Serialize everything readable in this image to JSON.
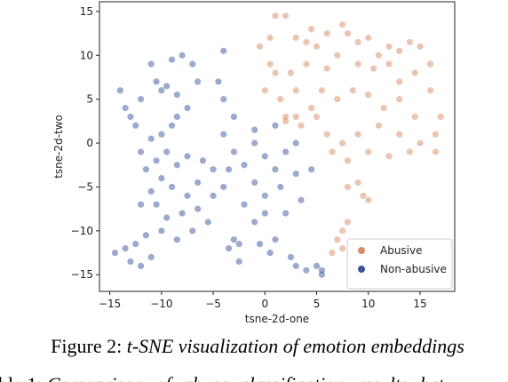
{
  "chart_data": {
    "type": "scatter",
    "xlabel": "tsne-2d-one",
    "ylabel": "tsne-2d-two",
    "xlim": [
      -16.0,
      18.35
    ],
    "ylim": [
      -16.9,
      16.1
    ],
    "xticks": [
      {
        "value": -15,
        "label": "−15"
      },
      {
        "value": -10,
        "label": "−10"
      },
      {
        "value": -5,
        "label": "−5"
      },
      0,
      5,
      10,
      15
    ],
    "yticks": [
      {
        "value": -15,
        "label": "−15"
      },
      {
        "value": -10,
        "label": "−10"
      },
      {
        "value": -5,
        "label": "−5"
      },
      0,
      5,
      10,
      15
    ],
    "legend": "lower right",
    "series": [
      {
        "name": "Abusive",
        "color": "#d98a66",
        "x": [
          1,
          2,
          0.5,
          3,
          4.5,
          5,
          6,
          7.5,
          8,
          9,
          10,
          11,
          12,
          13,
          14,
          15,
          16,
          14.5,
          13,
          12,
          10.5,
          9,
          7,
          6,
          4,
          2.5,
          1,
          0,
          1.5,
          3,
          4.5,
          5.5,
          7,
          8.5,
          10,
          11.5,
          13,
          14.5,
          16,
          17,
          16.5,
          15,
          13,
          11,
          9,
          7.5,
          6,
          5,
          3.5,
          2,
          6.5,
          8,
          10,
          12,
          14,
          16.5,
          9,
          8,
          9.5,
          10,
          8,
          7.5,
          7.5,
          6.5,
          7,
          3,
          2,
          0.5,
          -0.5,
          4
        ],
        "values": [
          14.5,
          14.5,
          12,
          12,
          13,
          11,
          12.5,
          13.5,
          12.5,
          11.5,
          12,
          10,
          11,
          10.5,
          11.5,
          11,
          9,
          8,
          7,
          9,
          8.5,
          9,
          10,
          8.5,
          9,
          8,
          8,
          6,
          5,
          6,
          4,
          6,
          5,
          6,
          5.5,
          4,
          5,
          3,
          6,
          3,
          1,
          0,
          1,
          2,
          1,
          0,
          1,
          3,
          2,
          3,
          -1,
          -2,
          -1,
          -1.5,
          -1,
          -1,
          -4.5,
          -5,
          -6,
          -6.5,
          -9,
          -10,
          -12,
          -12.5,
          -11,
          3,
          2.5,
          9,
          11,
          11.5
        ]
      },
      {
        "name": "Non-abusive",
        "color": "#3a55a0",
        "x": [
          -14,
          -13.5,
          -13,
          -12.5,
          -12,
          -11,
          -10.5,
          -10,
          -9.5,
          -9,
          -8.5,
          -8,
          -7,
          -6.5,
          -7.5,
          -8.5,
          -9,
          -10,
          -11,
          -12,
          -11.5,
          -10.5,
          -9.5,
          -8.5,
          -7.5,
          -6,
          -5,
          -6.5,
          -7.5,
          -9,
          -10,
          -11,
          -12,
          -10.5,
          -9.5,
          -8,
          -6.5,
          -5,
          -4,
          -3.5,
          -3,
          -4,
          -3,
          -4,
          -4.5,
          -4,
          -5.5,
          -7,
          -8.5,
          -10,
          -11.5,
          -12.5,
          -13.5,
          -14.5,
          -13,
          -12,
          -11,
          -2,
          -1,
          0,
          1,
          2,
          3,
          1.5,
          0,
          -1,
          -2,
          -1,
          0,
          2,
          3.5,
          3,
          4.5,
          -0.5,
          -2.5,
          -3.5,
          1,
          2.5,
          3,
          4,
          5,
          5.5,
          5.5,
          1,
          -1,
          -3,
          -2.5,
          0.5
        ],
        "values": [
          6,
          4,
          3,
          2,
          5,
          9,
          7,
          6,
          6.5,
          9.5,
          5.5,
          10,
          9,
          7,
          4,
          3,
          2,
          1,
          0.5,
          -1,
          -3,
          -2,
          -1,
          -2.5,
          -1.5,
          -2,
          -3,
          -4.5,
          -6,
          -5,
          -4,
          -5.5,
          -7,
          -7,
          -8.5,
          -8,
          -7.5,
          -6,
          -5,
          -3,
          -1,
          1,
          3,
          5,
          7,
          10.5,
          -9,
          -10,
          -11,
          -10,
          -10.5,
          -11.5,
          -12,
          -12.5,
          -13.5,
          -14,
          -13,
          -2.5,
          0,
          -1.5,
          -3,
          -1,
          0,
          -5,
          -6,
          -4.5,
          -7,
          -9,
          -8,
          -8,
          -6.5,
          -3.5,
          -3,
          -11.5,
          -11.5,
          -12,
          -11,
          -13,
          -14,
          -14.5,
          -14,
          -15,
          -14.5,
          2,
          1.5,
          -11,
          -13.5,
          -12.5
        ]
      }
    ]
  },
  "caption": {
    "label": "Figure 2:",
    "text": "t-SNE visualization of emotion embeddings"
  },
  "next_caption": {
    "label": "ble 1:",
    "text": "Comparison of abuse classification results betw"
  }
}
